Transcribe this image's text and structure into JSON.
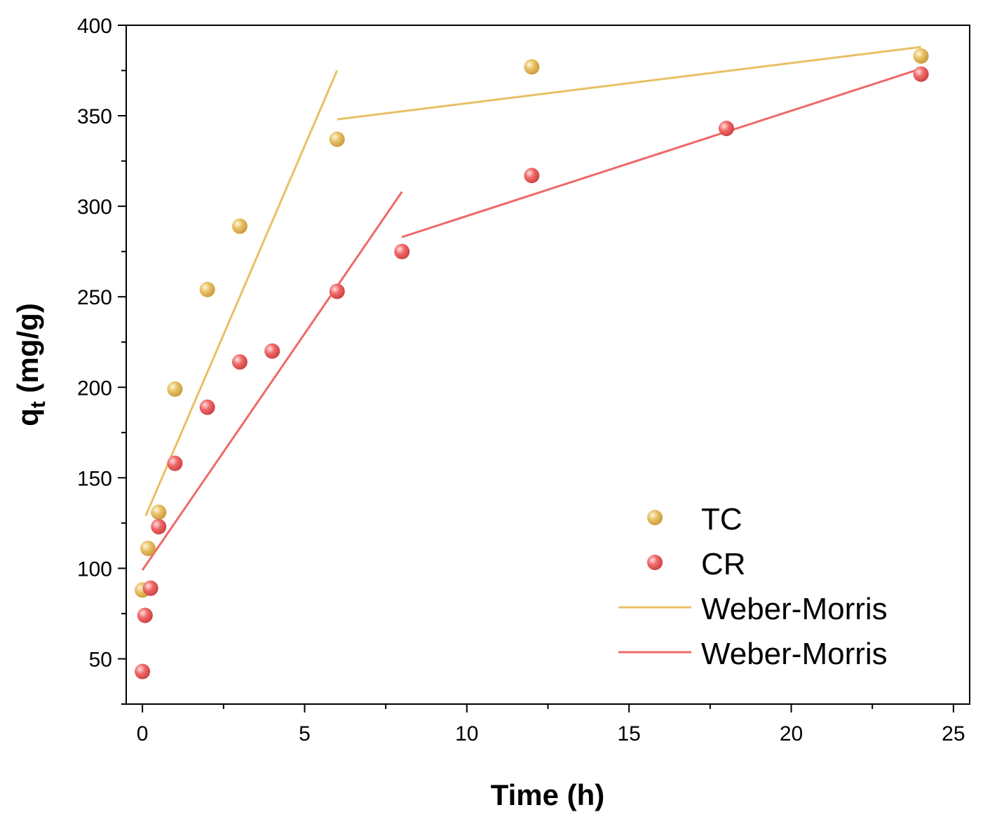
{
  "chart_data": {
    "type": "scatter",
    "xlabel": "Time (h)",
    "ylabel_main": "q",
    "ylabel_sub": "t",
    "ylabel_rest": " (mg/g)",
    "xlim": [
      -0.5,
      25.5
    ],
    "ylim": [
      25,
      400
    ],
    "x_ticks": [
      0,
      5,
      10,
      15,
      20,
      25
    ],
    "y_ticks": [
      50,
      100,
      150,
      200,
      250,
      300,
      350,
      400
    ],
    "grid": false,
    "legend_placement": "bottom-right",
    "series": [
      {
        "name": "TC",
        "kind": "points",
        "color": "#e8c064",
        "points": [
          [
            0,
            88
          ],
          [
            0.17,
            111
          ],
          [
            0.5,
            131
          ],
          [
            1,
            199
          ],
          [
            2,
            254
          ],
          [
            3,
            289
          ],
          [
            6,
            337
          ],
          [
            12,
            377
          ],
          [
            24,
            383
          ]
        ]
      },
      {
        "name": "CR",
        "kind": "points",
        "color": "#f06868",
        "points": [
          [
            0,
            43
          ],
          [
            0.08,
            74
          ],
          [
            0.25,
            89
          ],
          [
            0.5,
            123
          ],
          [
            1,
            158
          ],
          [
            2,
            189
          ],
          [
            3,
            214
          ],
          [
            4,
            220
          ],
          [
            6,
            253
          ],
          [
            8,
            275
          ],
          [
            12,
            317
          ],
          [
            18,
            343
          ],
          [
            24,
            373
          ]
        ]
      },
      {
        "name": "Weber-Morris",
        "kind": "line",
        "color": "#e8c064",
        "segments": [
          [
            [
              0.1,
              129
            ],
            [
              6,
              375
            ]
          ],
          [
            [
              6,
              348
            ],
            [
              24,
              388
            ]
          ]
        ]
      },
      {
        "name": "Weber-Morris",
        "kind": "line",
        "color": "#f06868",
        "segments": [
          [
            [
              0,
              99
            ],
            [
              8,
              308
            ]
          ],
          [
            [
              8,
              283
            ],
            [
              24,
              376
            ]
          ]
        ]
      }
    ]
  }
}
